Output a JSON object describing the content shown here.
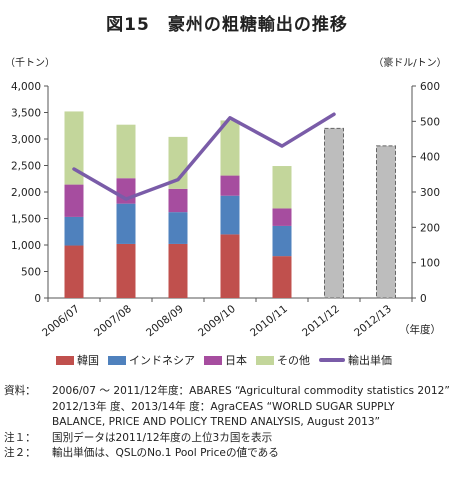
{
  "title": "図15　豪州の粗糖輸出の推移",
  "chart_data": {
    "type": "bar",
    "stacked": true,
    "categories": [
      "2006/07",
      "2007/08",
      "2008/09",
      "2009/10",
      "2010/11",
      "2011/12",
      "2012/13"
    ],
    "y_left_label": "（千トン）",
    "y_right_label": "（豪ドル/トン）",
    "x_unit_label": "（年度）",
    "y_left_ticks": [
      "0",
      "500",
      "1,000",
      "1,500",
      "2,000",
      "2,500",
      "3,000",
      "3,500",
      "4,000"
    ],
    "y_right_ticks": [
      "0",
      "100",
      "200",
      "300",
      "400",
      "500",
      "600"
    ],
    "ylim_left": [
      0,
      4000
    ],
    "ylim_right": [
      0,
      600
    ],
    "series": [
      {
        "name": "韓国",
        "color": "#c0504d",
        "values": [
          990,
          1020,
          1020,
          1200,
          790,
          null,
          null
        ]
      },
      {
        "name": "インドネシア",
        "color": "#4f81bd",
        "values": [
          540,
          760,
          600,
          730,
          570,
          null,
          null
        ]
      },
      {
        "name": "日本",
        "color": "#a64d9f",
        "values": [
          610,
          480,
          440,
          380,
          330,
          null,
          null
        ]
      },
      {
        "name": "その他",
        "color": "#c3d69b",
        "values": [
          1380,
          1010,
          980,
          1040,
          800,
          null,
          null
        ]
      }
    ],
    "totals_only": {
      "color": "#bdbdbd",
      "values": [
        null,
        null,
        null,
        null,
        null,
        3200,
        2870
      ]
    },
    "line": {
      "name": "輸出単価",
      "color": "#7a5ca8",
      "axis": "right",
      "values": [
        365,
        280,
        335,
        510,
        430,
        520,
        null
      ]
    },
    "grid": false,
    "legend_position": "bottom"
  },
  "notes": [
    {
      "label": "資料：",
      "lines": [
        "2006/07 ～ 2011/12年度：ABARES “Agricultural commodity statistics 2012”",
        "2012/13年 度、2013/14年 度：AgraCEAS “WORLD SUGAR SUPPLY BALANCE, PRICE AND POLICY TREND ANALYSIS, August 2013”"
      ]
    },
    {
      "label": "注１：",
      "lines": [
        "国別データは2011/12年度の上位3カ国を表示"
      ]
    },
    {
      "label": "注２：",
      "lines": [
        "輸出単価は、QSLのNo.1 Pool Priceの値である"
      ]
    }
  ]
}
